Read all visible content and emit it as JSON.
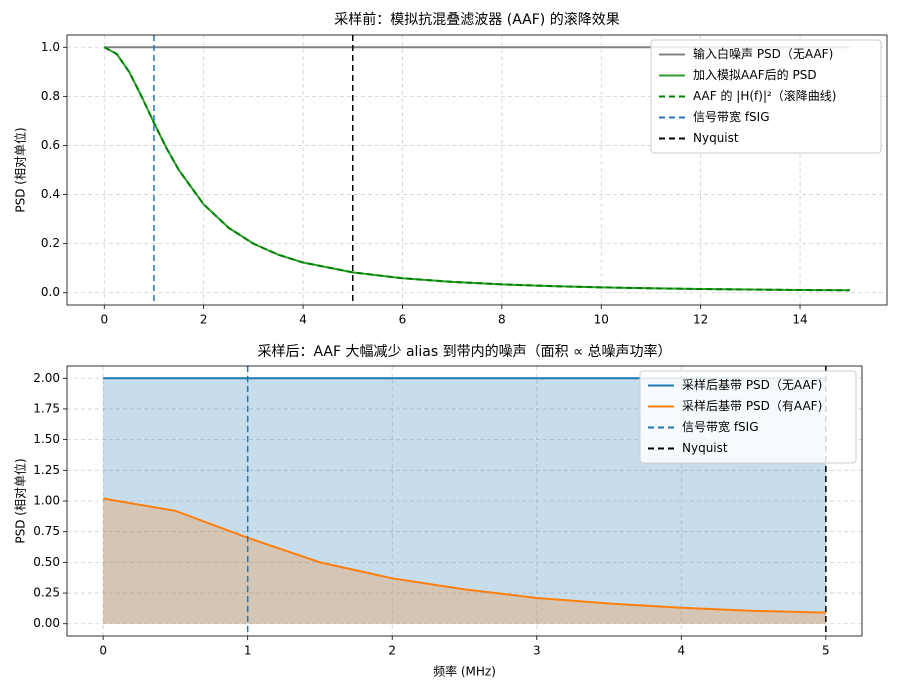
{
  "chart_data": [
    {
      "type": "line",
      "title": "采样前：模拟抗混叠滤波器 (AAF) 的滚降效果",
      "ylabel": "PSD (相对单位)",
      "x": [
        0,
        0.25,
        0.5,
        0.75,
        1,
        1.25,
        1.5,
        2,
        2.5,
        3,
        3.5,
        4,
        5,
        6,
        7,
        8,
        9,
        10,
        11,
        12,
        13,
        14,
        15
      ],
      "xlim": [
        -0.75,
        15.75
      ],
      "ylim": [
        -0.05,
        1.05
      ],
      "xticks": [
        0,
        2,
        4,
        6,
        8,
        10,
        12,
        14
      ],
      "yticks": [
        {
          "value": 0,
          "label": "0.0"
        },
        {
          "value": 0.2,
          "label": "0.2"
        },
        {
          "value": 0.4,
          "label": "0.4"
        },
        {
          "value": 0.6,
          "label": "0.6"
        },
        {
          "value": 0.8,
          "label": "0.8"
        },
        {
          "value": 1,
          "label": "1.0"
        }
      ],
      "grid": true,
      "legend": "upper right",
      "series": [
        {
          "name": "输入白噪声 PSD（无AAF)",
          "color": "#808080",
          "style": "solid",
          "values": [
            1,
            1,
            1,
            1,
            1,
            1,
            1,
            1,
            1,
            1,
            1,
            1,
            1,
            1,
            1,
            1,
            1,
            1,
            1,
            1,
            1,
            1,
            1
          ]
        },
        {
          "name": "加入模拟AAF后的 PSD",
          "color": "#2ca02c",
          "style": "solid",
          "values": [
            1,
            0.973,
            0.9,
            0.8,
            0.692,
            0.59,
            0.5,
            0.36,
            0.265,
            0.2,
            0.155,
            0.123,
            0.083,
            0.059,
            0.044,
            0.034,
            0.027,
            0.022,
            0.018,
            0.015,
            0.013,
            0.011,
            0.01
          ]
        },
        {
          "name": "AAF 的 |H(f)|²（滚降曲线)",
          "color": "#008000",
          "style": "dashed",
          "values": [
            1,
            0.973,
            0.9,
            0.8,
            0.692,
            0.59,
            0.5,
            0.36,
            0.265,
            0.2,
            0.155,
            0.123,
            0.083,
            0.059,
            0.044,
            0.034,
            0.027,
            0.022,
            0.018,
            0.015,
            0.013,
            0.011,
            0.01
          ]
        },
        {
          "name": "信号带宽 fSIG",
          "color": "#1f77b4",
          "style": "dashed",
          "xline": 1
        },
        {
          "name": "Nyquist",
          "color": "#000000",
          "style": "dashed",
          "xline": 5
        }
      ]
    },
    {
      "type": "line",
      "title": "采样后：AAF 大幅减少 alias 到带内的噪声（面积 ∝ 总噪声功率）",
      "xlabel": "频率 (MHz)",
      "ylabel": "PSD (相对单位)",
      "x": [
        0,
        0.5,
        1,
        1.5,
        2,
        2.5,
        3,
        3.5,
        4,
        4.5,
        5
      ],
      "xlim": [
        -0.25,
        5.25
      ],
      "ylim": [
        -0.1,
        2.1
      ],
      "xticks": [
        0,
        1,
        2,
        3,
        4,
        5
      ],
      "yticks": [
        {
          "value": 0,
          "label": "0.00"
        },
        {
          "value": 0.25,
          "label": "0.25"
        },
        {
          "value": 0.5,
          "label": "0.50"
        },
        {
          "value": 0.75,
          "label": "0.75"
        },
        {
          "value": 1,
          "label": "1.00"
        },
        {
          "value": 1.25,
          "label": "1.25"
        },
        {
          "value": 1.5,
          "label": "1.50"
        },
        {
          "value": 1.75,
          "label": "1.75"
        },
        {
          "value": 2,
          "label": "2.00"
        }
      ],
      "grid": true,
      "legend": "upper right",
      "series": [
        {
          "name": "采样后基带 PSD（无AAF)",
          "color": "#1f77b4",
          "style": "solid",
          "fill": true,
          "values": [
            2,
            2,
            2,
            2,
            2,
            2,
            2,
            2,
            2,
            2,
            2
          ]
        },
        {
          "name": "采样后基带 PSD（有AAF)",
          "color": "#ff7f0e",
          "style": "solid",
          "fill": true,
          "values": [
            1.02,
            0.92,
            0.7,
            0.5,
            0.37,
            0.28,
            0.21,
            0.165,
            0.13,
            0.105,
            0.09
          ]
        },
        {
          "name": "信号带宽 fSIG",
          "color": "#1f77b4",
          "style": "dashed",
          "xline": 1
        },
        {
          "name": "Nyquist",
          "color": "#000000",
          "style": "dashed",
          "xline": 5
        }
      ]
    }
  ]
}
